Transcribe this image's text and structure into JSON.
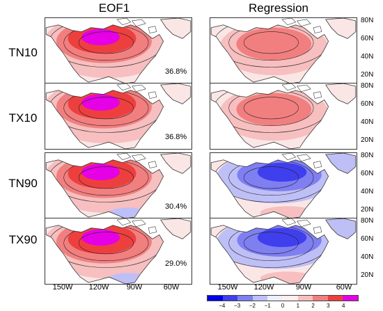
{
  "columns": [
    "EOF1",
    "Regression"
  ],
  "rows": [
    {
      "label": "TN10",
      "variance": "36.8%",
      "eof_sign": "pos",
      "reg_sign": "pos"
    },
    {
      "label": "TX10",
      "variance": "36.8%",
      "eof_sign": "pos",
      "reg_sign": "pos"
    },
    {
      "label": "TN90",
      "variance": "30.4%",
      "eof_sign": "pos",
      "reg_sign": "neg"
    },
    {
      "label": "TX90",
      "variance": "29.0%",
      "eof_sign": "pos",
      "reg_sign": "neg"
    }
  ],
  "latitude_labels": [
    "80N",
    "60N",
    "40N",
    "20N"
  ],
  "longitude_labels": [
    "150W",
    "120W",
    "90W",
    "60W"
  ],
  "colorbar": {
    "ticks": [
      "−4",
      "−3",
      "−2",
      "−1",
      "0",
      "1",
      "2",
      "3",
      "4"
    ],
    "colors": [
      "#0000e6",
      "#3f3fee",
      "#7f7ff2",
      "#bfbff7",
      "#eeeeff",
      "#ffeeee",
      "#f7bfbf",
      "#f27f7f",
      "#ee3f3f",
      "#e600e6"
    ]
  },
  "palette": {
    "magenta": "#e600e6",
    "strong_red": "#ee3f3f",
    "medium_red": "#f27f7f",
    "light_red": "#f7bfbf",
    "faint": "#fbe6e6",
    "light_blue": "#bfbff7",
    "medium_blue": "#7f7ff2",
    "strong_blue": "#3f3fee",
    "coast": "#333333"
  }
}
